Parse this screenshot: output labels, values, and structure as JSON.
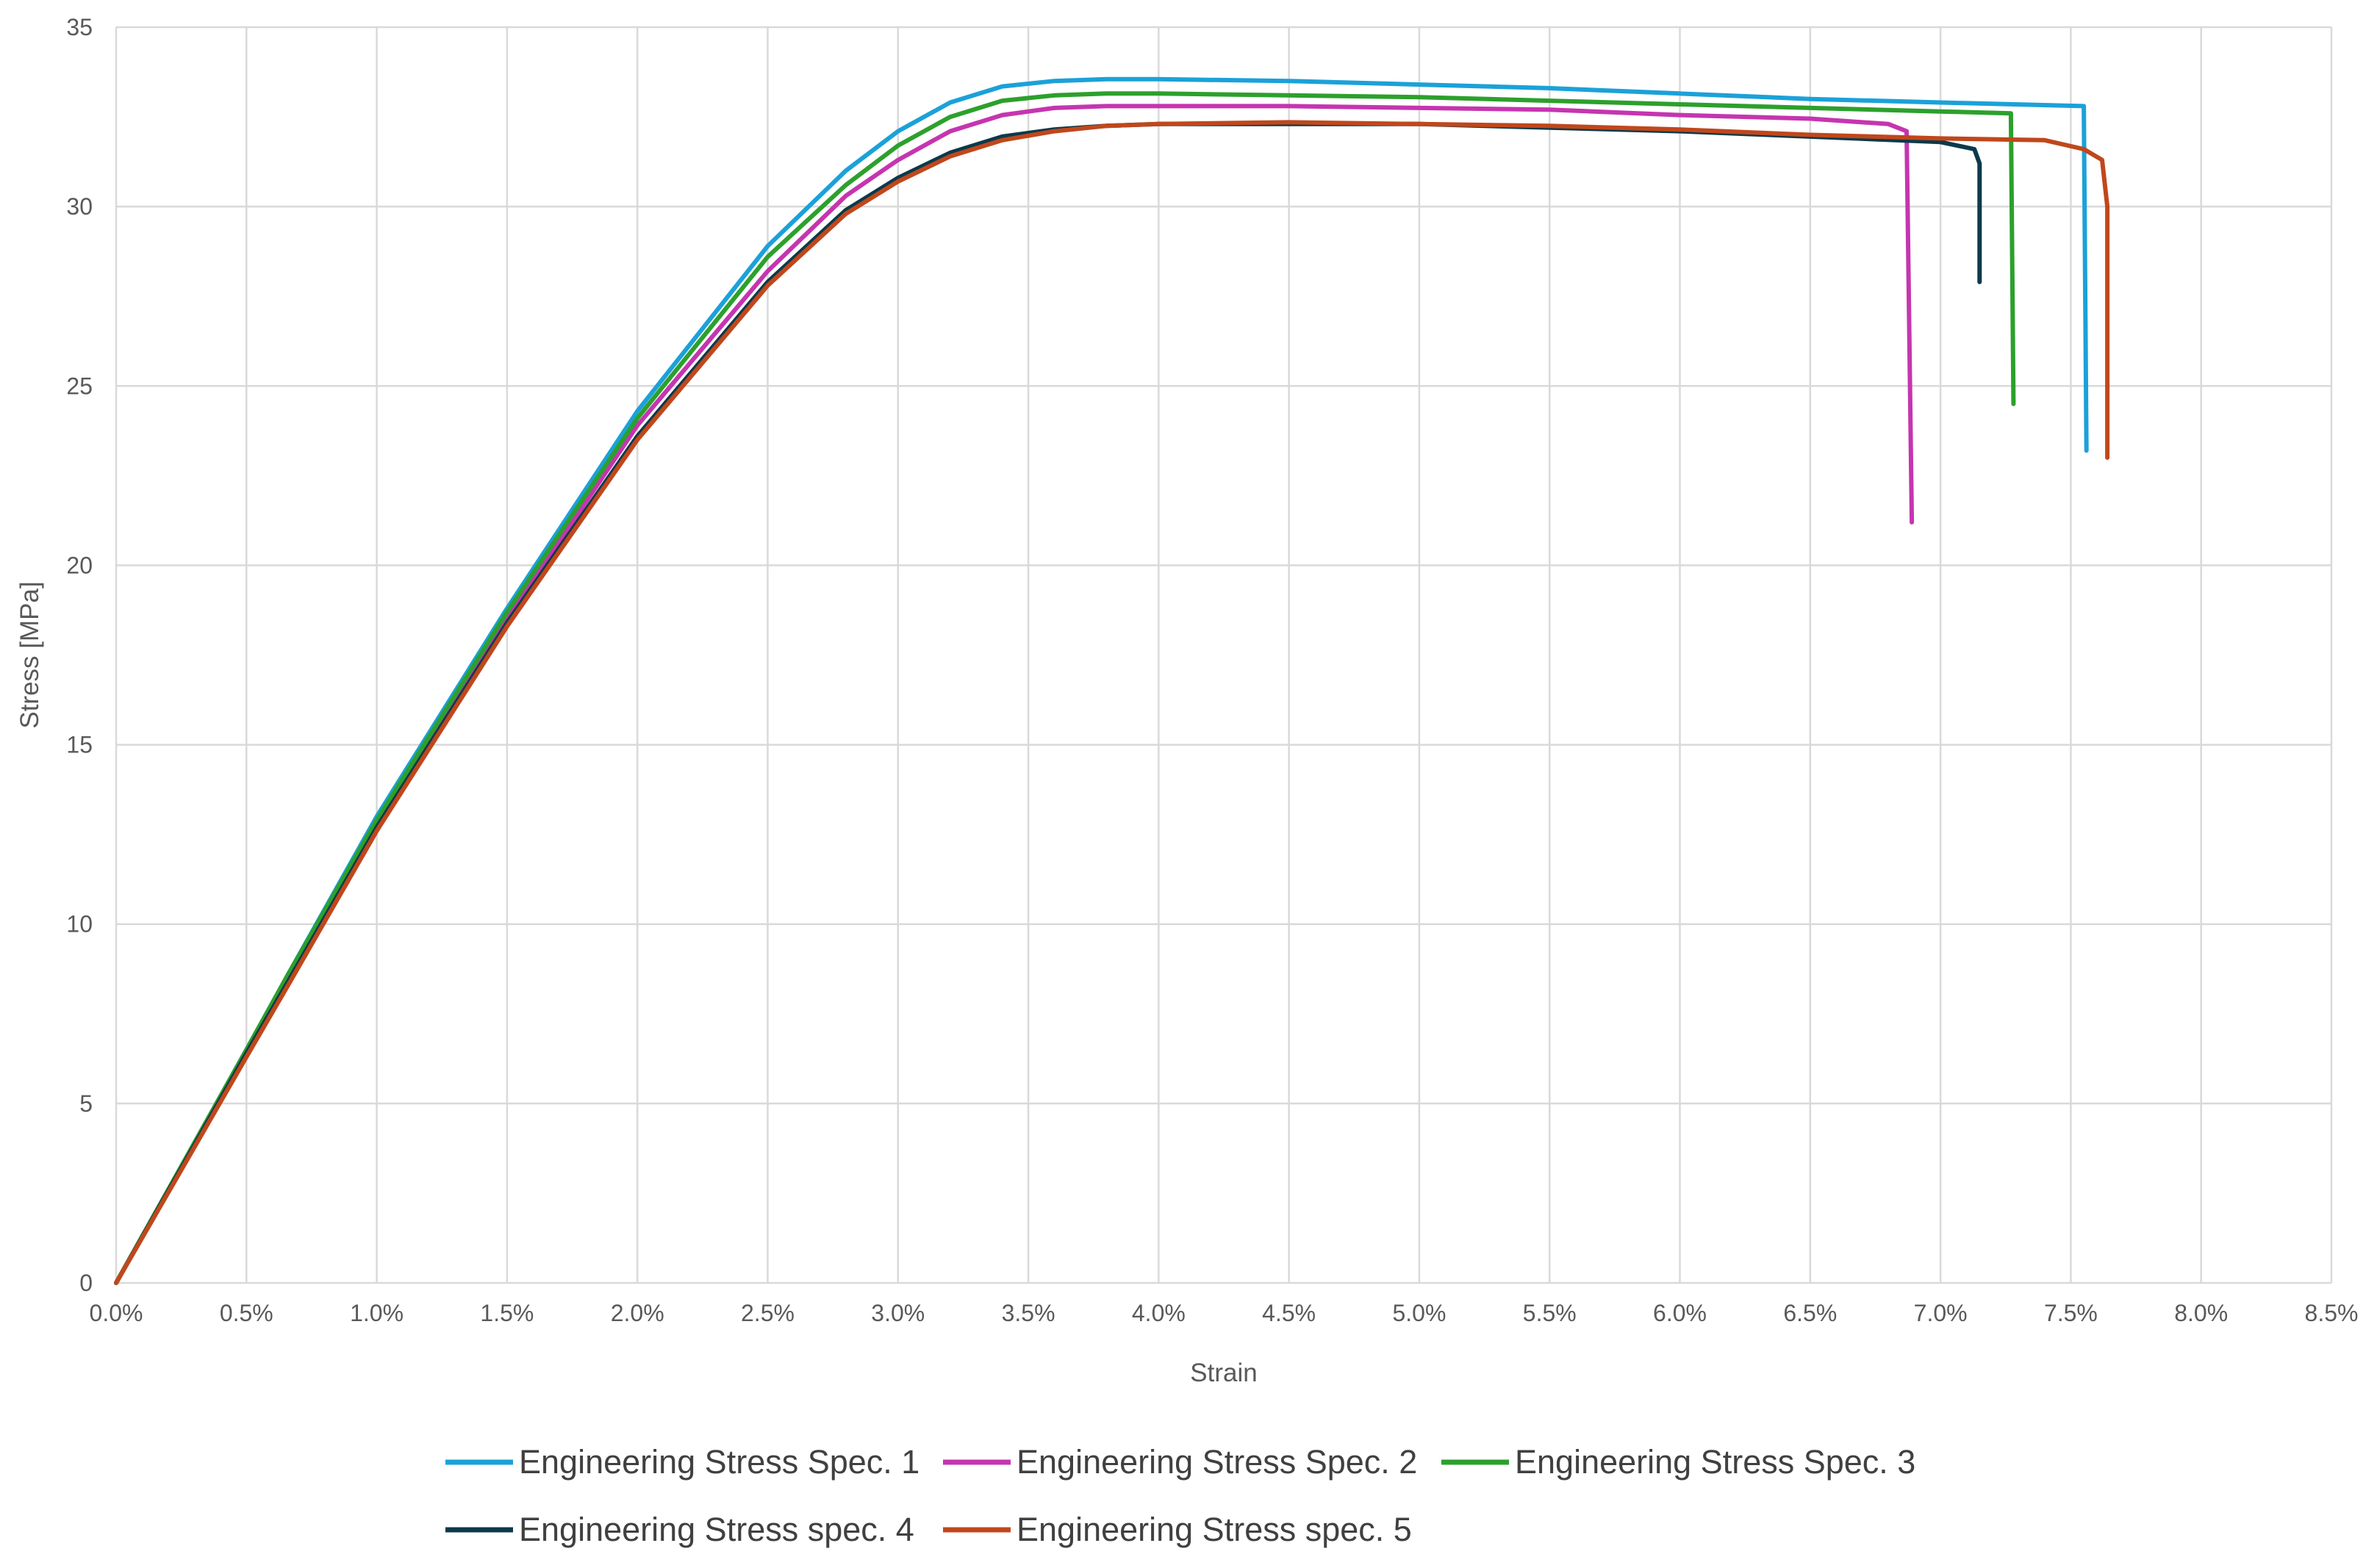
{
  "chart_data": {
    "type": "line",
    "xlabel": "Strain",
    "ylabel": "Stress [MPa]",
    "xlim": [
      0,
      0.085
    ],
    "ylim": [
      0,
      35
    ],
    "x_ticks": [
      0,
      0.005,
      0.01,
      0.015,
      0.02,
      0.025,
      0.03,
      0.035,
      0.04,
      0.045,
      0.05,
      0.055,
      0.06,
      0.065,
      0.07,
      0.075,
      0.08,
      0.085
    ],
    "x_tick_labels": [
      "0.0%",
      "0.5%",
      "1.0%",
      "1.5%",
      "2.0%",
      "2.5%",
      "3.0%",
      "3.5%",
      "4.0%",
      "4.5%",
      "5.0%",
      "5.5%",
      "6.0%",
      "6.5%",
      "7.0%",
      "7.5%",
      "8.0%",
      "8.5%"
    ],
    "y_ticks": [
      0,
      5,
      10,
      15,
      20,
      25,
      30,
      35
    ],
    "y_tick_labels": [
      "0",
      "5",
      "10",
      "15",
      "20",
      "25",
      "30",
      "35"
    ],
    "grid": true,
    "legend_position": "bottom",
    "series": [
      {
        "name": "Engineering Stress Spec. 1",
        "color": "#1BA1D9",
        "x": [
          0,
          0.005,
          0.0066,
          0.01,
          0.015,
          0.02,
          0.025,
          0.028,
          0.03,
          0.032,
          0.034,
          0.036,
          0.038,
          0.04,
          0.045,
          0.05,
          0.055,
          0.06,
          0.065,
          0.07,
          0.0755,
          0.0756
        ],
        "y": [
          0,
          6.5,
          8.6,
          13.0,
          18.8,
          24.3,
          28.9,
          31.0,
          32.1,
          32.9,
          33.35,
          33.5,
          33.55,
          33.55,
          33.5,
          33.4,
          33.3,
          33.15,
          33.0,
          32.9,
          32.8,
          23.2
        ]
      },
      {
        "name": "Engineering Stress Spec. 2",
        "color": "#C535B0",
        "x": [
          0,
          0.005,
          0.0066,
          0.01,
          0.015,
          0.02,
          0.025,
          0.028,
          0.03,
          0.032,
          0.034,
          0.036,
          0.038,
          0.04,
          0.045,
          0.05,
          0.055,
          0.06,
          0.065,
          0.068,
          0.0687,
          0.0689
        ],
        "y": [
          0,
          6.4,
          8.5,
          12.8,
          18.5,
          23.9,
          28.2,
          30.3,
          31.3,
          32.1,
          32.55,
          32.75,
          32.8,
          32.8,
          32.8,
          32.75,
          32.7,
          32.55,
          32.45,
          32.3,
          32.1,
          21.2
        ]
      },
      {
        "name": "Engineering Stress Spec. 3",
        "color": "#2CA02C",
        "x": [
          0,
          0.005,
          0.0066,
          0.01,
          0.015,
          0.02,
          0.025,
          0.028,
          0.03,
          0.032,
          0.034,
          0.036,
          0.038,
          0.04,
          0.045,
          0.05,
          0.055,
          0.06,
          0.065,
          0.07,
          0.0727,
          0.0728
        ],
        "y": [
          0,
          6.5,
          8.6,
          12.9,
          18.7,
          24.1,
          28.6,
          30.6,
          31.7,
          32.5,
          32.95,
          33.1,
          33.15,
          33.15,
          33.1,
          33.05,
          32.95,
          32.85,
          32.75,
          32.65,
          32.6,
          24.5
        ]
      },
      {
        "name": "Engineering Stress spec. 4",
        "color": "#0B3A4A",
        "x": [
          0,
          0.005,
          0.0066,
          0.01,
          0.015,
          0.02,
          0.025,
          0.028,
          0.03,
          0.032,
          0.034,
          0.036,
          0.038,
          0.04,
          0.045,
          0.05,
          0.055,
          0.06,
          0.065,
          0.07,
          0.0713,
          0.0715,
          0.0715
        ],
        "y": [
          0,
          6.4,
          8.4,
          12.7,
          18.4,
          23.6,
          27.9,
          29.9,
          30.8,
          31.5,
          31.95,
          32.15,
          32.25,
          32.3,
          32.3,
          32.3,
          32.2,
          32.1,
          31.95,
          31.8,
          31.6,
          31.2,
          27.9
        ]
      },
      {
        "name": "Engineering Stress spec. 5",
        "color": "#C0471C",
        "x": [
          0,
          0.005,
          0.0066,
          0.01,
          0.015,
          0.02,
          0.025,
          0.028,
          0.03,
          0.032,
          0.034,
          0.036,
          0.038,
          0.04,
          0.045,
          0.05,
          0.055,
          0.06,
          0.065,
          0.07,
          0.074,
          0.0755,
          0.0762,
          0.0764,
          0.0764
        ],
        "y": [
          0,
          6.3,
          8.3,
          12.6,
          18.3,
          23.5,
          27.8,
          29.8,
          30.7,
          31.4,
          31.85,
          32.1,
          32.25,
          32.3,
          32.35,
          32.3,
          32.25,
          32.15,
          32.0,
          31.9,
          31.85,
          31.6,
          31.3,
          30.0,
          23.0
        ]
      }
    ]
  }
}
